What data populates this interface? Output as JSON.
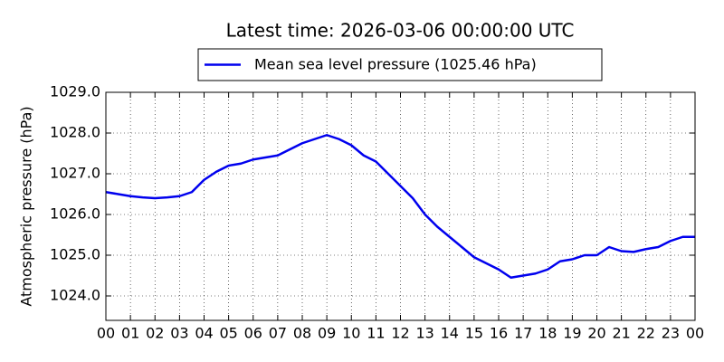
{
  "chart_data": {
    "type": "line",
    "title": "Latest time: 2026-03-06 00:00:00 UTC",
    "y_label": "Atmospheric pressure (hPa)",
    "legend": "upper center",
    "grid": true,
    "xlim": [
      0,
      24
    ],
    "ylim": [
      1023.4,
      1029.0
    ],
    "xticks": [
      {
        "value": 0,
        "label": "00"
      },
      {
        "value": 1,
        "label": "01"
      },
      {
        "value": 2,
        "label": "02"
      },
      {
        "value": 3,
        "label": "03"
      },
      {
        "value": 4,
        "label": "04"
      },
      {
        "value": 5,
        "label": "05"
      },
      {
        "value": 6,
        "label": "06"
      },
      {
        "value": 7,
        "label": "07"
      },
      {
        "value": 8,
        "label": "08"
      },
      {
        "value": 9,
        "label": "09"
      },
      {
        "value": 10,
        "label": "10"
      },
      {
        "value": 11,
        "label": "11"
      },
      {
        "value": 12,
        "label": "12"
      },
      {
        "value": 13,
        "label": "13"
      },
      {
        "value": 14,
        "label": "14"
      },
      {
        "value": 15,
        "label": "15"
      },
      {
        "value": 16,
        "label": "16"
      },
      {
        "value": 17,
        "label": "17"
      },
      {
        "value": 18,
        "label": "18"
      },
      {
        "value": 19,
        "label": "19"
      },
      {
        "value": 20,
        "label": "20"
      },
      {
        "value": 21,
        "label": "21"
      },
      {
        "value": 22,
        "label": "22"
      },
      {
        "value": 23,
        "label": "23"
      },
      {
        "value": 24,
        "label": "00"
      }
    ],
    "yticks": [
      {
        "value": 1024,
        "label": "1024.0"
      },
      {
        "value": 1025,
        "label": "1025.0"
      },
      {
        "value": 1026,
        "label": "1026.0"
      },
      {
        "value": 1027,
        "label": "1027.0"
      },
      {
        "value": 1028,
        "label": "1028.0"
      },
      {
        "value": 1029,
        "label": "1029.0"
      }
    ],
    "x": [
      0,
      0.5,
      1,
      1.5,
      2,
      2.5,
      3,
      3.5,
      4,
      4.5,
      5,
      5.5,
      6,
      6.5,
      7,
      7.5,
      8,
      8.5,
      9,
      9.5,
      10,
      10.5,
      11,
      11.5,
      12,
      12.5,
      13,
      13.5,
      14,
      14.5,
      15,
      15.5,
      16,
      16.5,
      17,
      17.5,
      18,
      18.5,
      19,
      19.5,
      20,
      20.5,
      21,
      21.5,
      22,
      22.5,
      23,
      23.5,
      24
    ],
    "series": [
      {
        "name": "Mean sea level pressure (1025.46 hPa)",
        "color": "#0000ee",
        "values": [
          1026.55,
          1026.5,
          1026.45,
          1026.42,
          1026.4,
          1026.42,
          1026.45,
          1026.55,
          1026.85,
          1027.05,
          1027.2,
          1027.25,
          1027.35,
          1027.4,
          1027.45,
          1027.6,
          1027.75,
          1027.85,
          1027.95,
          1027.85,
          1027.7,
          1027.45,
          1027.3,
          1027.0,
          1026.7,
          1026.4,
          1026.0,
          1025.7,
          1025.45,
          1025.2,
          1024.95,
          1024.8,
          1024.65,
          1024.45,
          1024.5,
          1024.55,
          1024.65,
          1024.85,
          1024.9,
          1025.0,
          1025.0,
          1025.2,
          1025.1,
          1025.08,
          1025.15,
          1025.2,
          1025.35,
          1025.45,
          1025.45
        ]
      }
    ]
  }
}
